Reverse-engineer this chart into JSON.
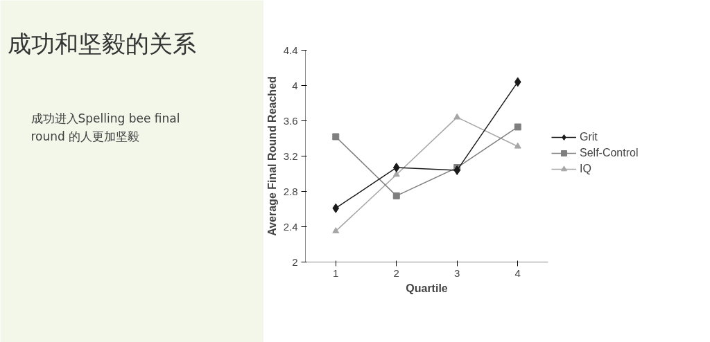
{
  "chart_data": {
    "type": "line",
    "title": "成功和坚毅的关系",
    "annotations": [
      "成功进入Spelling bee final round 的人更加坚毅"
    ],
    "xlabel": "Quartile",
    "ylabel": "Average Final Round Reached",
    "categories": [
      "1",
      "2",
      "3",
      "4"
    ],
    "series": [
      {
        "name": "Grit",
        "color": "#1a1a1a",
        "marker": "diamond",
        "values": [
          2.61,
          3.07,
          3.04,
          4.04
        ]
      },
      {
        "name": "Self-Control",
        "color": "#7f7f7f",
        "marker": "square",
        "values": [
          3.42,
          2.75,
          3.07,
          3.53
        ]
      },
      {
        "name": "IQ",
        "color": "#a6a6a6",
        "marker": "triangle",
        "values": [
          2.35,
          2.99,
          3.64,
          3.31
        ]
      }
    ],
    "ylim": [
      2,
      4.4
    ],
    "yticks": [
      2,
      2.4,
      2.8,
      3.2,
      3.6,
      4,
      4.4
    ],
    "legend": "right",
    "grid": false
  }
}
